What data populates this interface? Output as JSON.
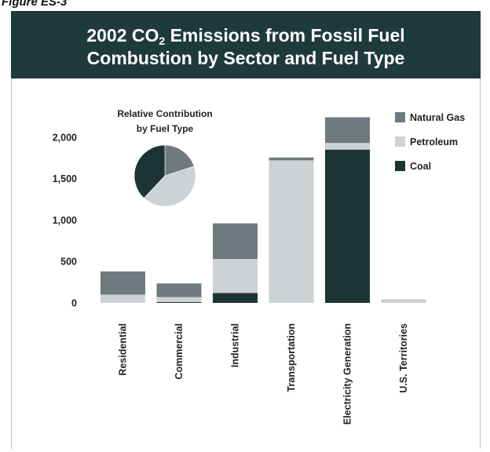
{
  "figure_label": "Figure ES-3",
  "chart_data": [
    {
      "type": "bar",
      "stacked": true,
      "title_line1_pre": "2002 CO",
      "title_line1_sub": "2",
      "title_line1_post": " Emissions from Fossil Fuel",
      "title_line2": "Combustion by Sector and Fuel Type",
      "categories": [
        "Residential",
        "Commercial",
        "Industrial",
        "Transportation",
        "Electricity Generation",
        "U.S. Territories"
      ],
      "series": [
        {
          "name": "Coal",
          "color": "#1c3434",
          "values": [
            0,
            10,
            120,
            0,
            1850,
            0
          ]
        },
        {
          "name": "Petroleum",
          "color": "#cdd2d4",
          "values": [
            100,
            60,
            410,
            1720,
            80,
            45
          ]
        },
        {
          "name": "Natural Gas",
          "color": "#6f7a7e",
          "values": [
            280,
            165,
            430,
            35,
            310,
            0
          ]
        }
      ],
      "legend_order": [
        "Natural Gas",
        "Petroleum",
        "Coal"
      ],
      "legend_position": "top-right",
      "ylim": [
        0,
        2250
      ],
      "yticks": [
        0,
        500,
        1000,
        1500,
        2000
      ],
      "ytick_labels": [
        "0",
        "500",
        "1,000",
        "1,500",
        "2,000"
      ],
      "grid": false
    },
    {
      "type": "pie",
      "title_line1": "Relative Contribution",
      "title_line2": "by Fuel Type",
      "slices": [
        {
          "name": "Natural Gas",
          "value": 20
        },
        {
          "name": "Petroleum",
          "value": 42
        },
        {
          "name": "Coal",
          "value": 38
        }
      ]
    }
  ]
}
